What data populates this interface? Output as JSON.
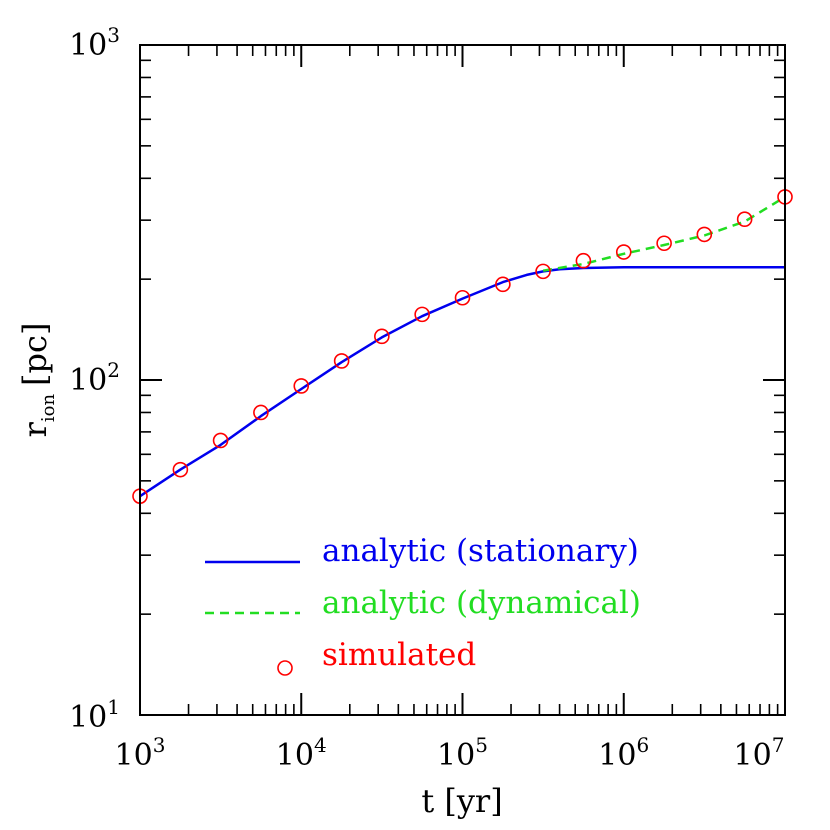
{
  "chart_data": {
    "type": "line",
    "xlabel": "t [yr]",
    "ylabel": {
      "main": "r",
      "sub": "ion",
      "unit": "[pc]"
    },
    "x_scale": "log",
    "y_scale": "log",
    "xlim": [
      1000,
      10000000
    ],
    "ylim": [
      10,
      1000
    ],
    "x_ticks": [
      {
        "value": 1000,
        "base": "10",
        "exp": "3"
      },
      {
        "value": 10000,
        "base": "10",
        "exp": "4"
      },
      {
        "value": 100000,
        "base": "10",
        "exp": "5"
      },
      {
        "value": 1000000,
        "base": "10",
        "exp": "6"
      },
      {
        "value": 10000000,
        "base": "10",
        "exp": "7"
      }
    ],
    "y_ticks": [
      {
        "value": 10,
        "base": "10",
        "exp": "1"
      },
      {
        "value": 100,
        "base": "10",
        "exp": "2"
      },
      {
        "value": 1000,
        "base": "10",
        "exp": "3"
      }
    ],
    "legend_position": "bottom-right",
    "series": [
      {
        "name": "analytic (stationary)",
        "style": "solid",
        "color": "#0000ee",
        "x": [
          1000,
          1780,
          3160,
          5620,
          10000,
          17800,
          31600,
          56200,
          100000,
          178000,
          250000,
          316000,
          400000,
          562000,
          1000000,
          1780000,
          3160000,
          5620000,
          10000000
        ],
        "y": [
          45,
          54,
          64,
          78,
          94,
          113,
          134,
          155,
          175,
          196,
          206,
          211,
          214,
          216,
          217,
          217,
          217,
          217,
          217
        ]
      },
      {
        "name": "analytic (dynamical)",
        "style": "dashed",
        "color": "#22dd22",
        "x": [
          316000,
          562000,
          1000000,
          1780000,
          3160000,
          5620000,
          10000000
        ],
        "y": [
          212,
          222,
          238,
          253,
          270,
          297,
          352
        ]
      },
      {
        "name": "simulated",
        "style": "marker",
        "color": "#ff0000",
        "x": [
          1000,
          1780,
          3160,
          5620,
          10000,
          17800,
          31600,
          56200,
          100000,
          178000,
          316000,
          562000,
          1000000,
          1780000,
          3160000,
          5620000,
          10000000
        ],
        "y": [
          45,
          54,
          66,
          80,
          96,
          114,
          135,
          157,
          176,
          193,
          211,
          227,
          241,
          256,
          272,
          302,
          352
        ]
      }
    ]
  }
}
